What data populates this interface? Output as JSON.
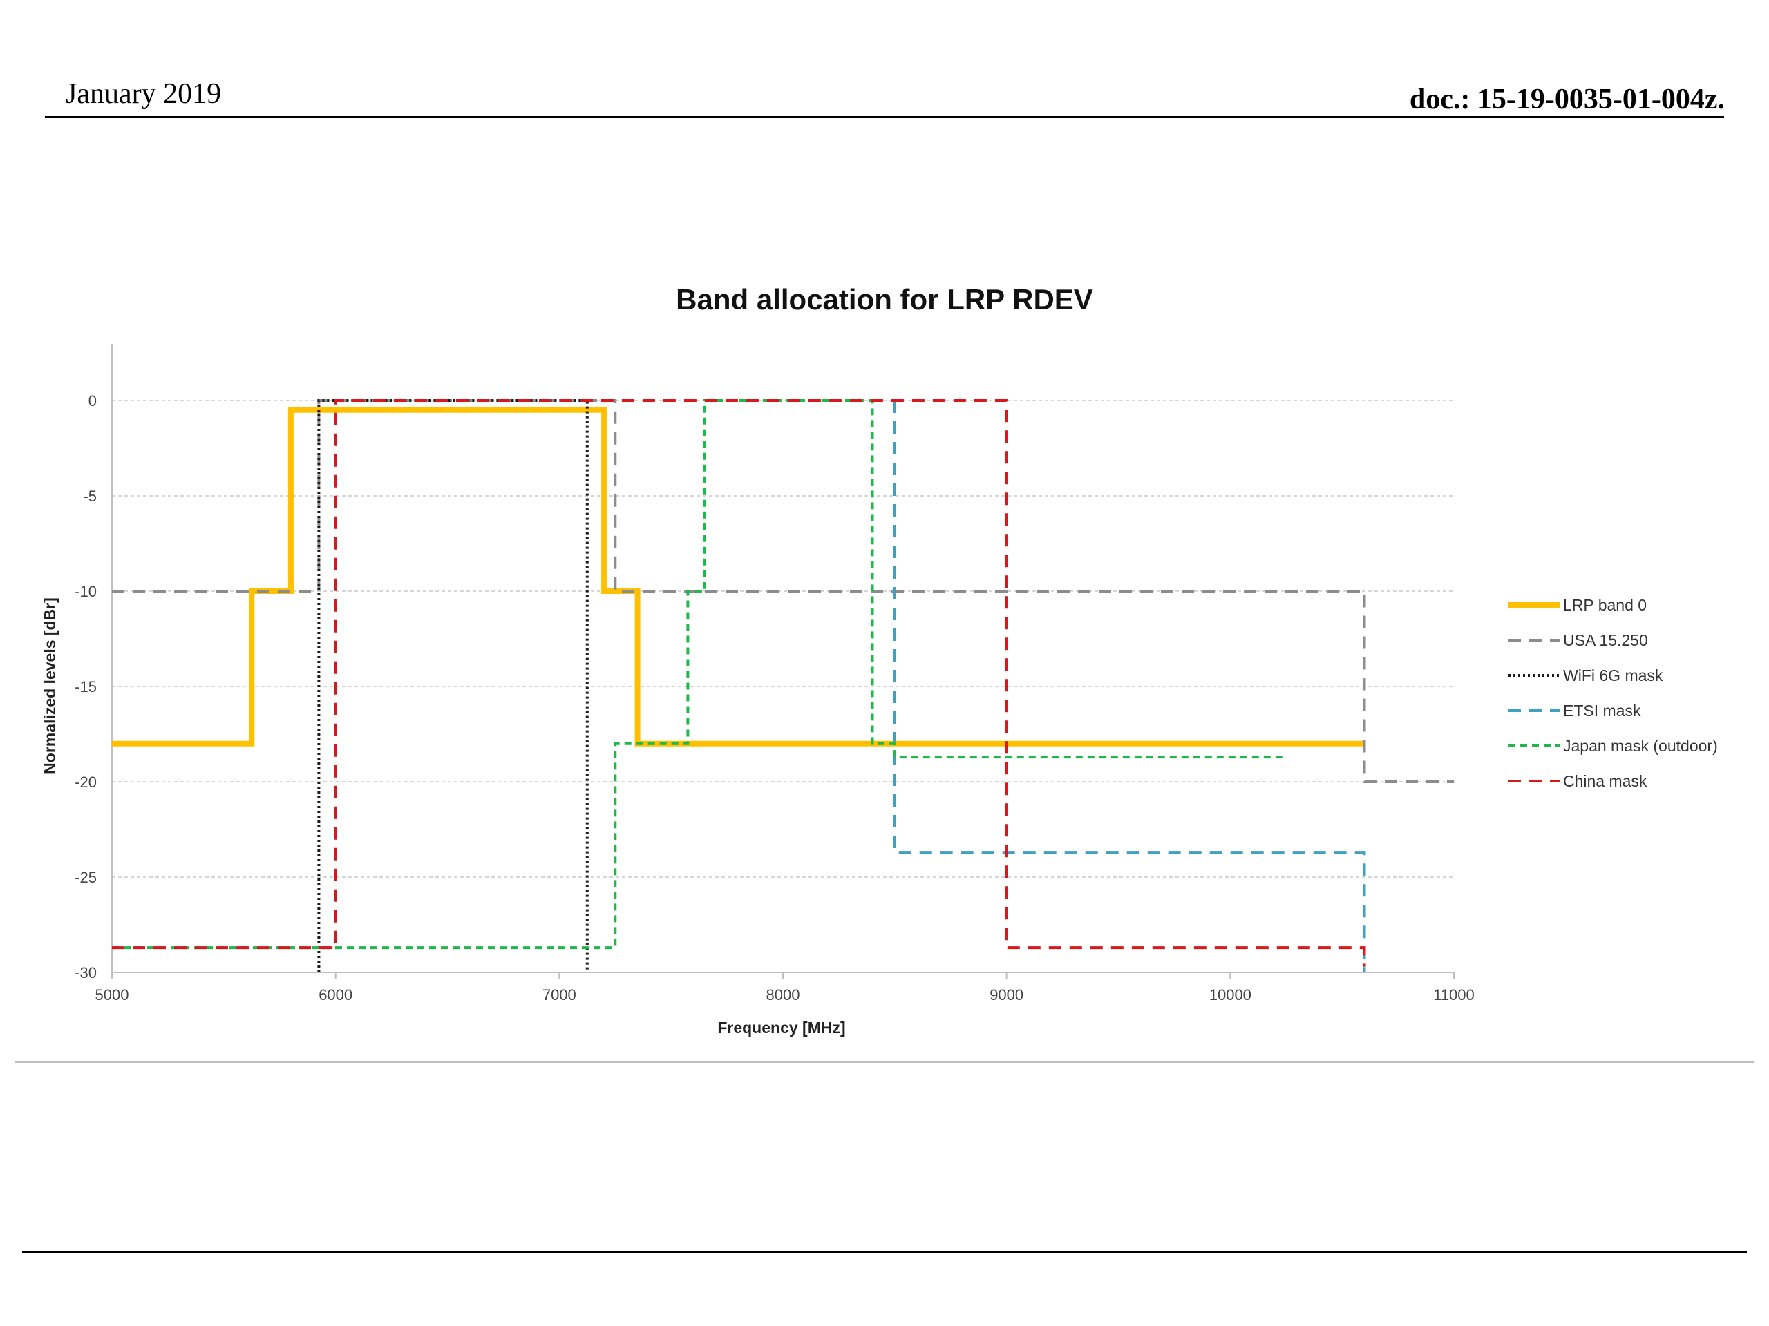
{
  "header": {
    "date": "January 2019",
    "doc_id": "doc.: 15-19-0035-01-004z."
  },
  "chart_data": {
    "type": "line",
    "title": "Band allocation for LRP RDEV",
    "xlabel": "Frequency [MHz]",
    "ylabel": "Normalized levels [dBr]",
    "xlim": [
      5000,
      11000
    ],
    "ylim": [
      -30,
      0
    ],
    "x_ticks": [
      "5000",
      "6000",
      "7000",
      "8000",
      "9000",
      "10000",
      "11000"
    ],
    "y_ticks": [
      "0",
      "-5",
      "-10",
      "-15",
      "-20",
      "-25",
      "-30"
    ],
    "grid": true,
    "legend_position": "right",
    "series": [
      {
        "name": "LRP band 0",
        "color": "#ffc000",
        "style": "solid",
        "x": [
          5000,
          5625,
          5625,
          5800,
          5800,
          7200,
          7200,
          7350,
          7350,
          10600
        ],
        "y": [
          -18,
          -18,
          -10,
          -10,
          -0.5,
          -0.5,
          -10,
          -10,
          -18,
          -18
        ]
      },
      {
        "name": "USA 15.250",
        "color": "#8c8c8c",
        "style": "dash",
        "x": [
          5000,
          5925,
          5925,
          7250,
          7250,
          10600,
          10600,
          11000
        ],
        "y": [
          -10,
          -10,
          0,
          0,
          -10,
          -10,
          -20,
          -20
        ]
      },
      {
        "name": "WiFi 6G mask",
        "color": "#1a1a1a",
        "style": "dot",
        "x": [
          5925,
          5925,
          7125,
          7125
        ],
        "y": [
          -30,
          0,
          0,
          -30
        ]
      },
      {
        "name": "ETSI mask",
        "color": "#3fa0c0",
        "style": "dash",
        "x": [
          8500,
          8500,
          10600,
          10600
        ],
        "y": [
          0,
          -23.7,
          -23.7,
          -30
        ]
      },
      {
        "name": "Japan mask (outdoor)",
        "color": "#1fb84a",
        "style": "shortdash",
        "x": [
          5000,
          7250,
          7250,
          7575,
          7575,
          7650,
          7650,
          8400,
          8400,
          8500,
          8500,
          10250
        ],
        "y": [
          -28.7,
          -28.7,
          -18,
          -18,
          -10,
          -10,
          0,
          0,
          -18,
          -18,
          -18.7,
          -18.7
        ]
      },
      {
        "name": "China mask",
        "color": "#d7191c",
        "style": "dash",
        "x": [
          5000,
          6000,
          6000,
          9000,
          9000,
          10600,
          10600
        ],
        "y": [
          -28.7,
          -28.7,
          0,
          0,
          -28.7,
          -28.7,
          -29.7
        ]
      }
    ]
  }
}
